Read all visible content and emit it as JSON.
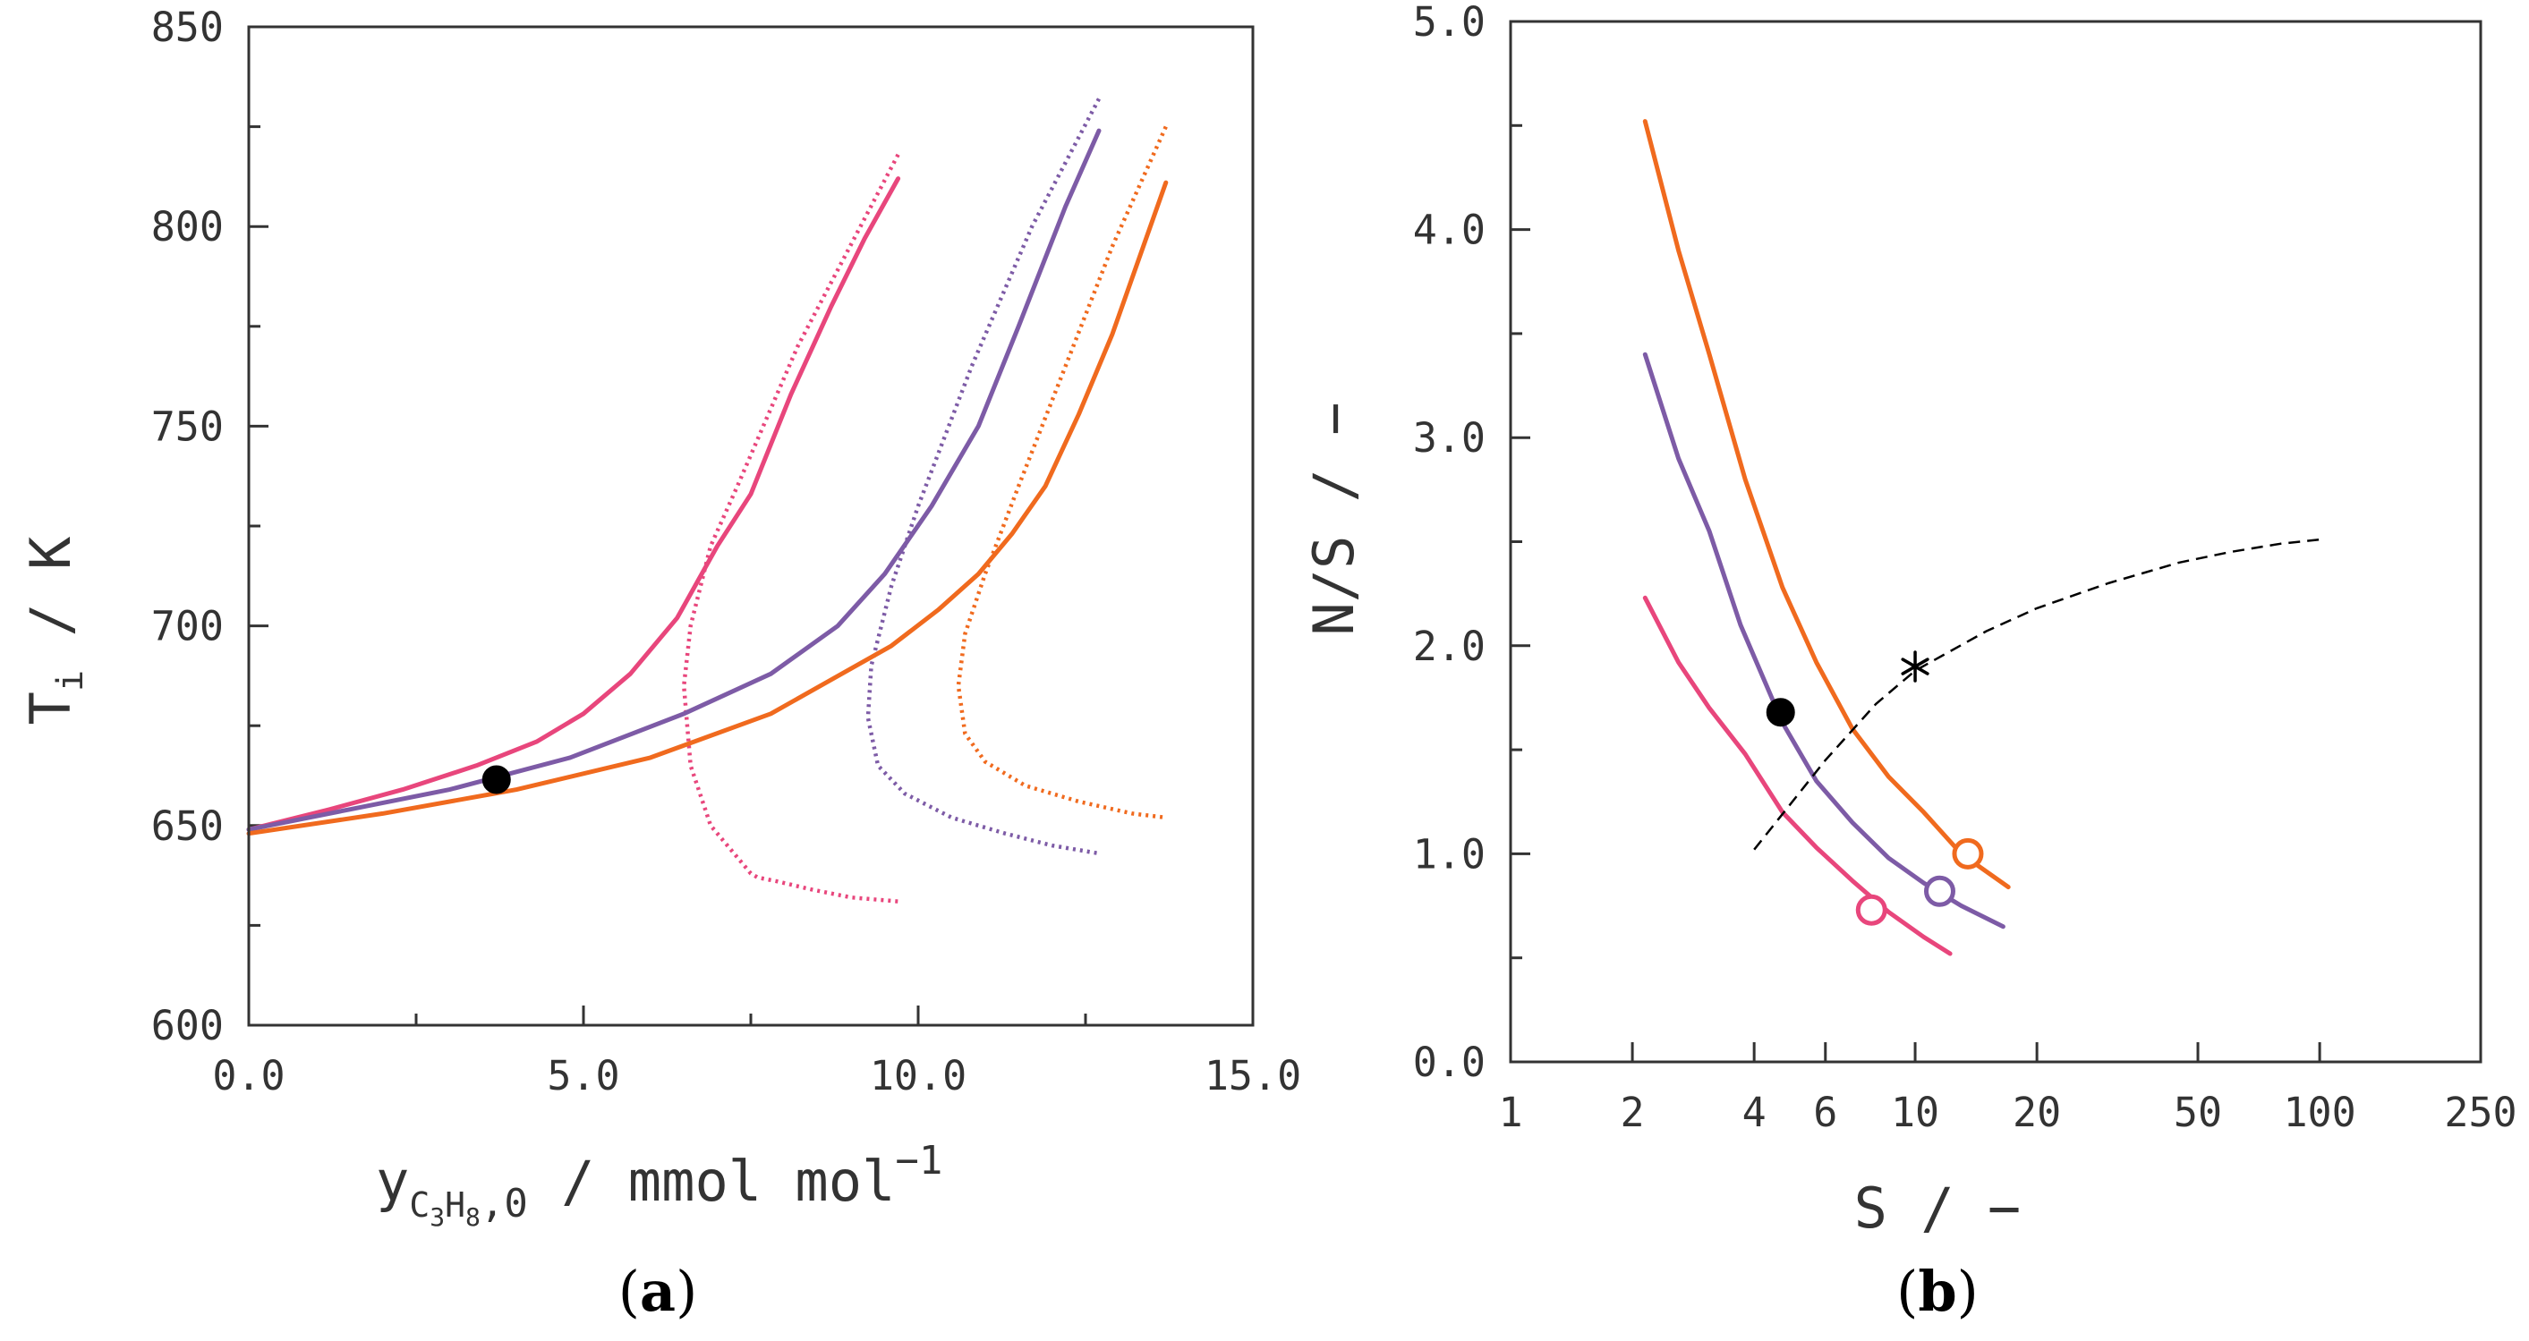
{
  "colors": {
    "pink": "#e8467c",
    "purple": "#7d5ba6",
    "orange": "#f06a1e",
    "axis": "#333333",
    "marker": "#000000"
  },
  "chart_data": [
    {
      "panel": "a",
      "type": "line",
      "panel_label": {
        "open": "(",
        "letter": "a",
        "close": ")"
      },
      "xlabel": {
        "base": "y",
        "sub1": "C",
        "n1": "3",
        "mid": "H",
        "n2": "8",
        "tail": ",0",
        "unit": " / mmol mol",
        "exp": "−1"
      },
      "ylabel": {
        "base": "T",
        "sub": "i",
        "unit": " / K"
      },
      "xlim": [
        0,
        15
      ],
      "ylim": [
        600,
        850
      ],
      "x_ticks": [
        0,
        5,
        10,
        15
      ],
      "x_tick_labels": [
        "0.0",
        "5.0",
        "10.0",
        "15.0"
      ],
      "x_minor_ticks": [
        2.5,
        7.5,
        12.5
      ],
      "y_ticks": [
        600,
        650,
        700,
        750,
        800,
        850
      ],
      "y_tick_labels": [
        "600",
        "650",
        "700",
        "750",
        "800",
        "850"
      ],
      "y_minor_ticks": [
        625,
        675,
        725,
        775,
        825
      ],
      "series": [
        {
          "name": "pink solid",
          "color": "pink",
          "style": "solid",
          "x": [
            0,
            1.2,
            2.3,
            3.4,
            4.3,
            5.0,
            5.7,
            6.4,
            7.0,
            7.5,
            8.1,
            8.7,
            9.2,
            9.7
          ],
          "y": [
            649,
            654,
            659,
            665,
            671,
            678,
            688,
            702,
            720,
            733,
            758,
            780,
            797,
            812
          ]
        },
        {
          "name": "pink dotted",
          "color": "pink",
          "style": "dotted",
          "x": [
            9.7,
            8.2,
            7.3,
            6.9,
            6.6,
            6.5,
            6.6,
            6.9,
            7.4,
            7.5,
            7.6,
            7.9,
            8.4,
            9.0,
            9.7
          ],
          "y": [
            818,
            770,
            735,
            720,
            700,
            685,
            665,
            650,
            640,
            638,
            637,
            636,
            634,
            632,
            631
          ]
        },
        {
          "name": "purple solid",
          "color": "purple",
          "style": "solid",
          "x": [
            0,
            1.5,
            3.0,
            4.8,
            6.5,
            7.8,
            8.8,
            9.5,
            10.2,
            10.9,
            11.5,
            12.2,
            12.7
          ],
          "y": [
            649,
            654,
            659,
            667,
            678,
            688,
            700,
            713,
            730,
            750,
            775,
            805,
            824
          ]
        },
        {
          "name": "purple dotted",
          "color": "purple",
          "style": "dotted",
          "x": [
            12.7,
            11.7,
            10.8,
            10.0,
            9.6,
            9.3,
            9.25,
            9.4,
            9.8,
            10.5,
            11.3,
            12.0,
            12.7
          ],
          "y": [
            832,
            800,
            765,
            730,
            710,
            690,
            677,
            665,
            658,
            652,
            648,
            645,
            643
          ]
        },
        {
          "name": "orange solid",
          "color": "orange",
          "style": "solid",
          "x": [
            0,
            2.0,
            4.0,
            6.0,
            7.8,
            9.6,
            10.3,
            10.9,
            11.4,
            11.9,
            12.4,
            12.9,
            13.3,
            13.7
          ],
          "y": [
            648,
            653,
            659,
            667,
            678,
            695,
            704,
            713,
            723,
            735,
            753,
            773,
            792,
            811
          ]
        },
        {
          "name": "orange dotted",
          "color": "orange",
          "style": "dotted",
          "x": [
            13.7,
            12.9,
            12.2,
            11.5,
            11.0,
            10.7,
            10.6,
            10.7,
            11.0,
            11.6,
            12.4,
            13.2,
            13.7
          ],
          "y": [
            825,
            795,
            765,
            735,
            713,
            698,
            685,
            673,
            666,
            660,
            656,
            653,
            652
          ]
        }
      ],
      "markers": [
        {
          "x": 3.7,
          "y": 661.5,
          "fill": "marker",
          "stroke": "marker",
          "shape": "filled-circle"
        }
      ]
    },
    {
      "panel": "b",
      "type": "line",
      "panel_label": {
        "open": "(",
        "letter": "b",
        "close": ")"
      },
      "xlabel": {
        "text": "S / −"
      },
      "ylabel": {
        "text": "N/S / −"
      },
      "xscale": "log",
      "xlim": [
        1,
        250
      ],
      "ylim": [
        0,
        5
      ],
      "x_ticks": [
        1,
        2,
        4,
        6,
        10,
        20,
        50,
        100,
        250
      ],
      "x_tick_labels": [
        "1",
        "2",
        "4",
        "6",
        "10",
        "20",
        "50",
        "100",
        "250"
      ],
      "y_ticks": [
        0,
        1,
        2,
        3,
        4,
        5
      ],
      "y_tick_labels": [
        "0.0",
        "1.0",
        "2.0",
        "3.0",
        "4.0",
        "5.0"
      ],
      "y_minor_ticks": [
        0.5,
        1.5,
        2.5,
        3.5,
        4.5
      ],
      "series": [
        {
          "name": "orange",
          "color": "orange",
          "style": "solid",
          "x": [
            2.15,
            2.6,
            3.1,
            3.8,
            4.7,
            5.7,
            7.0,
            8.6,
            10.5,
            13.0,
            17.0
          ],
          "y": [
            4.52,
            3.9,
            3.4,
            2.8,
            2.28,
            1.92,
            1.6,
            1.37,
            1.2,
            1.0,
            0.84
          ]
        },
        {
          "name": "purple",
          "color": "purple",
          "style": "solid",
          "x": [
            2.15,
            2.6,
            3.1,
            3.7,
            4.7,
            5.7,
            7.0,
            8.6,
            10.5,
            13.0,
            16.5
          ],
          "y": [
            3.4,
            2.9,
            2.55,
            2.1,
            1.63,
            1.35,
            1.15,
            0.98,
            0.86,
            0.75,
            0.65
          ]
        },
        {
          "name": "pink",
          "color": "pink",
          "style": "solid",
          "x": [
            2.15,
            2.6,
            3.1,
            3.8,
            4.7,
            5.7,
            7.0,
            8.6,
            10.5,
            12.2
          ],
          "y": [
            2.23,
            1.92,
            1.7,
            1.48,
            1.2,
            1.03,
            0.87,
            0.72,
            0.6,
            0.52
          ]
        },
        {
          "name": "dashed",
          "color": "marker",
          "style": "dashed",
          "x": [
            4.0,
            6.0,
            8.0,
            10.0,
            15.0,
            20.0,
            30.0,
            45.0,
            60.0,
            80.0,
            100.0
          ],
          "y": [
            1.02,
            1.45,
            1.72,
            1.88,
            2.07,
            2.18,
            2.3,
            2.4,
            2.45,
            2.49,
            2.51
          ]
        }
      ],
      "markers": [
        {
          "x": 13.5,
          "y": 1.0,
          "fill": "none",
          "stroke": "orange",
          "shape": "open-circle"
        },
        {
          "x": 11.5,
          "y": 0.82,
          "fill": "none",
          "stroke": "purple",
          "shape": "open-circle"
        },
        {
          "x": 7.8,
          "y": 0.73,
          "fill": "none",
          "stroke": "pink",
          "shape": "open-circle"
        },
        {
          "x": 4.65,
          "y": 1.68,
          "fill": "marker",
          "stroke": "marker",
          "shape": "filled-circle"
        },
        {
          "x": 10.0,
          "y": 1.9,
          "fill": "none",
          "stroke": "marker",
          "shape": "asterisk"
        }
      ]
    }
  ]
}
